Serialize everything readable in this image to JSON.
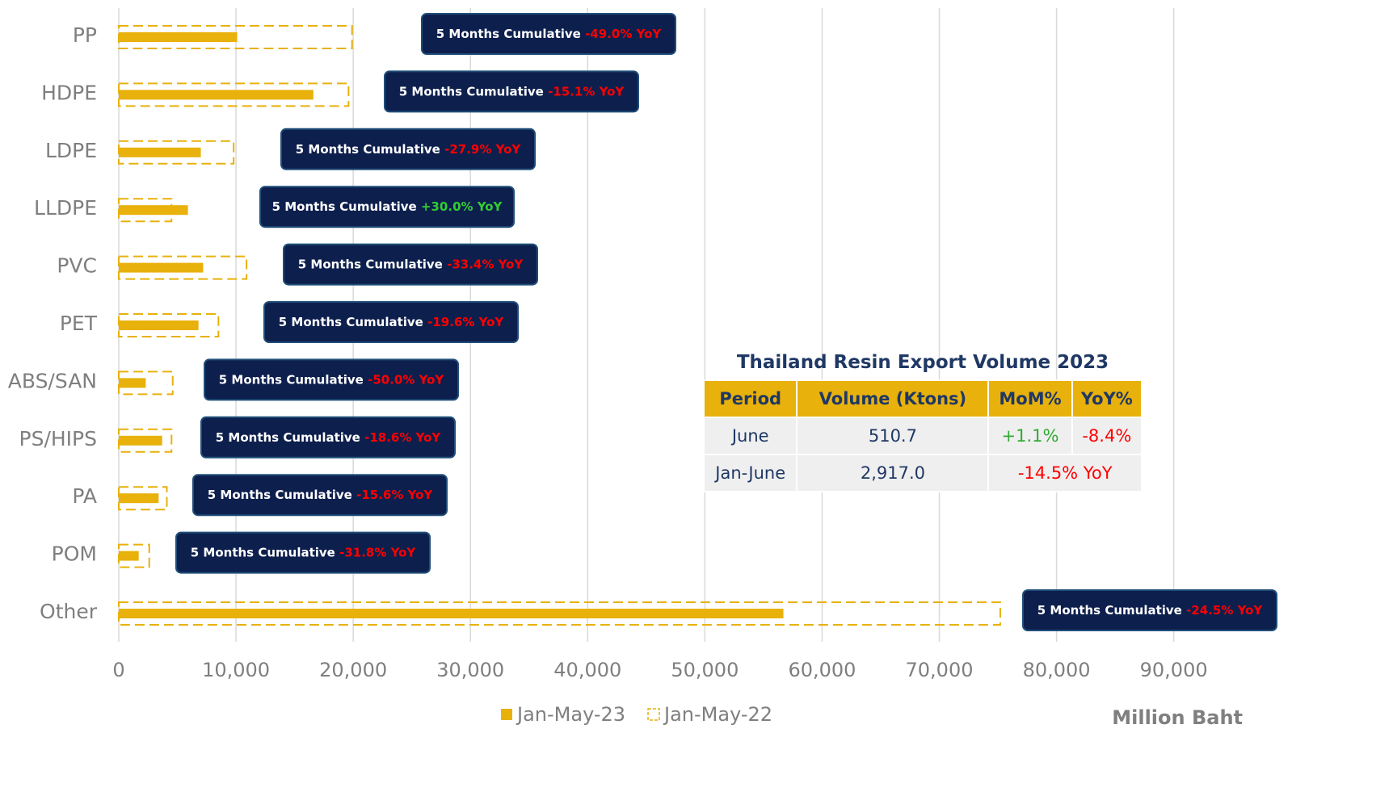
{
  "chart_data": {
    "type": "bar",
    "orientation": "horizontal",
    "categories": [
      "PP",
      "HDPE",
      "LDPE",
      "LLDPE",
      "PVC",
      "PET",
      "ABS/SAN",
      "PS/HIPS",
      "PA",
      "POM",
      "Other"
    ],
    "series": [
      {
        "name": "Jan-May-23",
        "color": "#e8b10b",
        "style": "solid",
        "values": [
          10100,
          16600,
          7000,
          5900,
          7200,
          6800,
          2300,
          3700,
          3400,
          1700,
          56700
        ]
      },
      {
        "name": "Jan-May-22",
        "color": "#e8b10b",
        "style": "dashed",
        "values": [
          19900,
          19600,
          9800,
          4500,
          10900,
          8500,
          4600,
          4500,
          4100,
          2600,
          75200
        ]
      }
    ],
    "xlim": [
      0,
      97400
    ],
    "xticks": [
      0,
      {
        "value": 10000,
        "label": "10,000"
      },
      {
        "value": 20000,
        "label": "20,000"
      },
      {
        "value": 30000,
        "label": "30,000"
      },
      {
        "value": 40000,
        "label": "40,000"
      },
      {
        "value": 50000,
        "label": "50,000"
      },
      {
        "value": 60000,
        "label": "60,000"
      },
      {
        "value": 70000,
        "label": "70,000"
      },
      {
        "value": 80000,
        "label": "80,000"
      },
      {
        "value": 90000,
        "label": "90,000"
      }
    ],
    "grid": true,
    "xlabel": "Million Baht",
    "legend": "bottom",
    "annotations": [
      {
        "text": "5 Months Cumulative",
        "change": "-49.0% YoY",
        "color": "#ff0000"
      },
      {
        "text": "5 Months Cumulative",
        "change": "-15.1% YoY",
        "color": "#ff0000"
      },
      {
        "text": "5 Months Cumulative",
        "change": "-27.9% YoY",
        "color": "#ff0000"
      },
      {
        "text": "5 Months Cumulative",
        "change": "+30.0% YoY",
        "color": "#33cc33"
      },
      {
        "text": "5 Months Cumulative",
        "change": "-33.4% YoY",
        "color": "#ff0000"
      },
      {
        "text": "5 Months Cumulative",
        "change": "-19.6% YoY",
        "color": "#ff0000"
      },
      {
        "text": "5 Months Cumulative",
        "change": "-50.0% YoY",
        "color": "#ff0000"
      },
      {
        "text": "5 Months Cumulative",
        "change": "-18.6% YoY",
        "color": "#ff0000"
      },
      {
        "text": "5 Months Cumulative",
        "change": "-15.6% YoY",
        "color": "#ff0000"
      },
      {
        "text": "5 Months Cumulative",
        "change": "-31.8% YoY",
        "color": "#ff0000"
      },
      {
        "text": "5 Months Cumulative",
        "change": "-24.5% YoY",
        "color": "#ff0000"
      }
    ]
  },
  "table": {
    "title": "Thailand Resin Export Volume 2023",
    "header": [
      "Period",
      "Volume (Ktons)",
      "MoM%",
      "YoY%"
    ],
    "rows": [
      [
        "June",
        "510.7",
        "+1.1%",
        "-8.4%"
      ],
      [
        "Jan-June",
        "2,917.0",
        "-14.5% YoY"
      ]
    ]
  }
}
